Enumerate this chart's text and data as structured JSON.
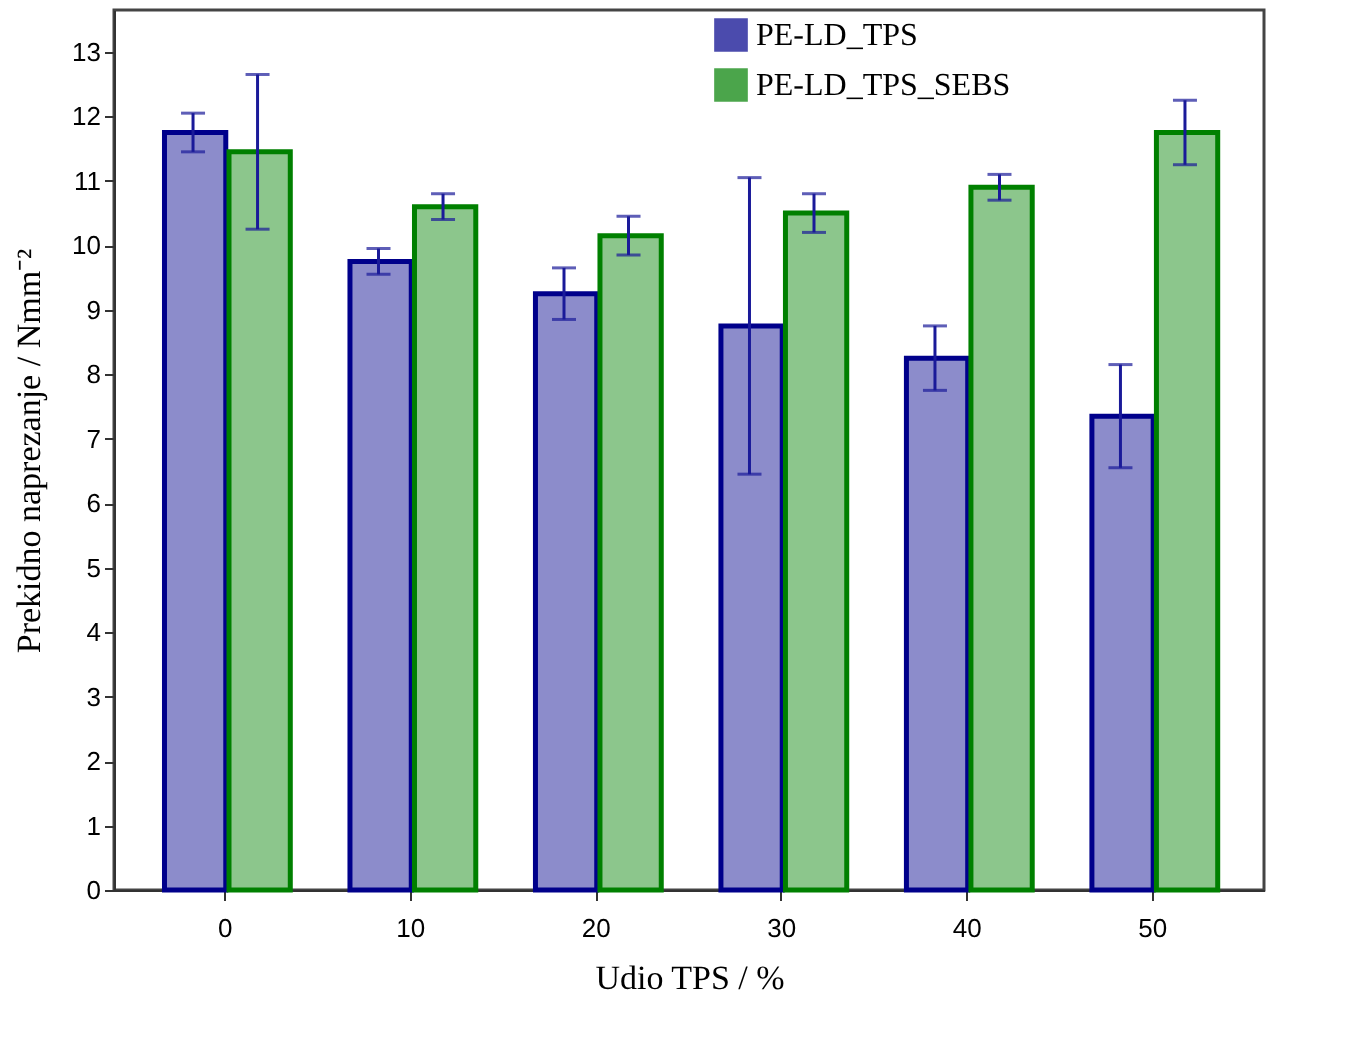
{
  "chart_data": {
    "type": "bar",
    "xlabel": "Udio TPS / %",
    "ylabel": "Prekidno naprezanje  / Nmm⁻²",
    "categories": [
      "0",
      "10",
      "20",
      "30",
      "40",
      "50"
    ],
    "series": [
      {
        "name": "PE-LD_TPS",
        "color": "#00008b",
        "values": [
          11.75,
          9.75,
          9.25,
          8.75,
          8.25,
          7.35
        ],
        "errors": [
          0.3,
          0.2,
          0.4,
          2.3,
          0.5,
          0.8
        ]
      },
      {
        "name": "PE-LD_TPS_SEBS",
        "color": "#008000",
        "values": [
          11.45,
          10.6,
          10.15,
          10.5,
          10.9,
          11.75
        ],
        "errors": [
          1.2,
          0.2,
          0.3,
          0.3,
          0.2,
          0.5
        ]
      }
    ],
    "ylim": [
      0,
      13.65
    ],
    "yticks": [
      0,
      1,
      2,
      3,
      4,
      5,
      6,
      7,
      8,
      9,
      10,
      11,
      12,
      13
    ],
    "grid": false,
    "legend": "top right"
  }
}
